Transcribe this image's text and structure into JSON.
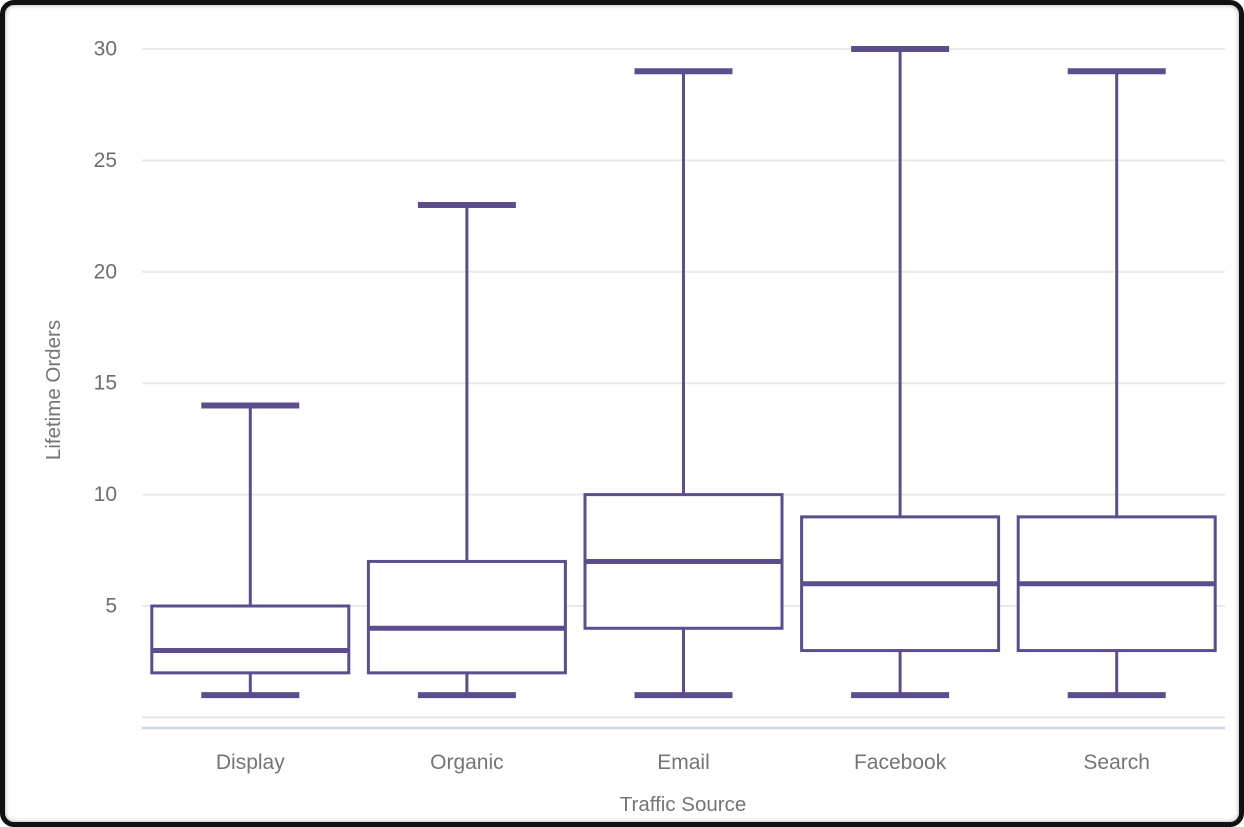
{
  "chart_data": {
    "type": "box",
    "title": "",
    "xlabel": "Traffic Source",
    "ylabel": "Lifetime Orders",
    "categories": [
      "Display",
      "Organic",
      "Email",
      "Facebook",
      "Search"
    ],
    "series": [
      {
        "name": "Display",
        "whisker_low": 1,
        "q1": 2,
        "median": 3,
        "q3": 5,
        "whisker_high": 14
      },
      {
        "name": "Organic",
        "whisker_low": 1,
        "q1": 2,
        "median": 4,
        "q3": 7,
        "whisker_high": 23
      },
      {
        "name": "Email",
        "whisker_low": 1,
        "q1": 4,
        "median": 7,
        "q3": 10,
        "whisker_high": 29
      },
      {
        "name": "Facebook",
        "whisker_low": 1,
        "q1": 3,
        "median": 6,
        "q3": 9,
        "whisker_high": 30
      },
      {
        "name": "Search",
        "whisker_low": 1,
        "q1": 3,
        "median": 6,
        "q3": 9,
        "whisker_high": 29
      }
    ],
    "yticks": [
      5,
      10,
      15,
      20,
      25,
      30
    ],
    "ylim": [
      0,
      31
    ],
    "grid": true,
    "legend": "none",
    "colors": {
      "box_stroke": "#5C4E8C",
      "box_fill": "#ffffff",
      "gridline": "#e9e9e9",
      "zero_gridline": "#e4e4e4",
      "axis_baseline": "#ccd6e6",
      "tick_text": "#6e6e6e",
      "title_text": "#757575",
      "frame_border": "#111111",
      "background": "#ffffff"
    }
  }
}
